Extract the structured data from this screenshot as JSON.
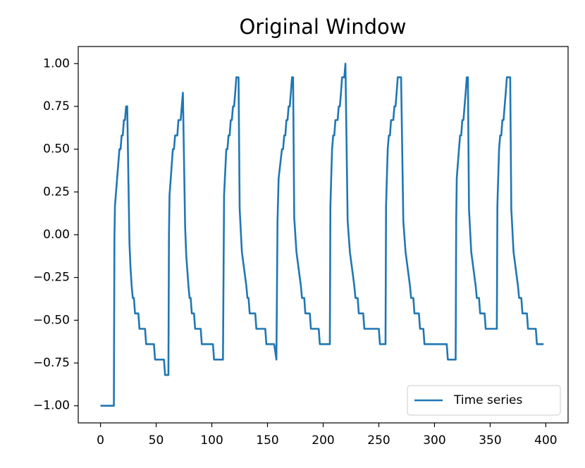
{
  "chart_data": {
    "type": "line",
    "title": "Original Window",
    "x": [
      0,
      12,
      12.5,
      13,
      17,
      18,
      19,
      20,
      21,
      22,
      23,
      24,
      26,
      27,
      28,
      29,
      30,
      31,
      34,
      35,
      40,
      41,
      48,
      49,
      57,
      58,
      61,
      61.5,
      62,
      65,
      66,
      67,
      69,
      70,
      72,
      73,
      74,
      76,
      77,
      79,
      80,
      81,
      82,
      84,
      85,
      90,
      91,
      101,
      102,
      110,
      111,
      113,
      114,
      115,
      116,
      117,
      118,
      119,
      120,
      121,
      122,
      124,
      125,
      127,
      129,
      131,
      132,
      133,
      134,
      139,
      140,
      148,
      149,
      156,
      158,
      159,
      160,
      163,
      164,
      165,
      166,
      167,
      168,
      169,
      170,
      171,
      172,
      173,
      174,
      176,
      178,
      180,
      181,
      183,
      184,
      188,
      189,
      196,
      197,
      206,
      206.5,
      208,
      209,
      210,
      211,
      213,
      214,
      215,
      216,
      217,
      219,
      220,
      222,
      224,
      226,
      228,
      229,
      231,
      232,
      236,
      237,
      250,
      251,
      256,
      256.5,
      258,
      259,
      260,
      261,
      263,
      264,
      265,
      266,
      267,
      270,
      272,
      274,
      276,
      278,
      279,
      281,
      282,
      286,
      287,
      290,
      291,
      311,
      312,
      319,
      319.5,
      320,
      322,
      323,
      324,
      325,
      326,
      327,
      328,
      329,
      330,
      331,
      333,
      335,
      337,
      338,
      340,
      341,
      345,
      346,
      356,
      356.5,
      358,
      359,
      360,
      361,
      362,
      363,
      364,
      365,
      368,
      369,
      371,
      373,
      375,
      376,
      378,
      379,
      383,
      384,
      391,
      392,
      398
    ],
    "series": [
      {
        "name": "Time series",
        "color": "#1f77b4",
        "values": [
          -1,
          -1,
          -0.02,
          0.17,
          0.5,
          0.5,
          0.58,
          0.58,
          0.67,
          0.67,
          0.75,
          0.75,
          -0.05,
          -0.2,
          -0.3,
          -0.37,
          -0.37,
          -0.46,
          -0.46,
          -0.55,
          -0.55,
          -0.64,
          -0.64,
          -0.73,
          -0.73,
          -0.82,
          -0.82,
          0,
          0.23,
          0.5,
          0.5,
          0.58,
          0.58,
          0.67,
          0.67,
          0.75,
          0.83,
          0.05,
          -0.12,
          -0.3,
          -0.37,
          -0.37,
          -0.46,
          -0.46,
          -0.55,
          -0.55,
          -0.64,
          -0.64,
          -0.73,
          -0.73,
          0.23,
          0.5,
          0.5,
          0.58,
          0.58,
          0.67,
          0.67,
          0.75,
          0.75,
          0.83,
          0.92,
          0.92,
          0.15,
          -0.1,
          -0.2,
          -0.3,
          -0.37,
          -0.37,
          -0.46,
          -0.46,
          -0.55,
          -0.55,
          -0.64,
          -0.64,
          -0.73,
          0.08,
          0.33,
          0.5,
          0.5,
          0.58,
          0.58,
          0.67,
          0.67,
          0.75,
          0.75,
          0.83,
          0.92,
          0.92,
          0.1,
          -0.1,
          -0.2,
          -0.3,
          -0.37,
          -0.37,
          -0.46,
          -0.46,
          -0.55,
          -0.55,
          -0.64,
          -0.64,
          0.17,
          0.5,
          0.58,
          0.58,
          0.67,
          0.67,
          0.75,
          0.75,
          0.83,
          0.92,
          0.92,
          1,
          0.08,
          -0.1,
          -0.2,
          -0.3,
          -0.37,
          -0.37,
          -0.46,
          -0.46,
          -0.55,
          -0.55,
          -0.64,
          -0.64,
          0.17,
          0.5,
          0.58,
          0.58,
          0.67,
          0.67,
          0.75,
          0.75,
          0.83,
          0.92,
          0.92,
          0.08,
          -0.1,
          -0.2,
          -0.3,
          -0.37,
          -0.37,
          -0.46,
          -0.46,
          -0.55,
          -0.55,
          -0.64,
          -0.64,
          -0.73,
          -0.73,
          0.08,
          0.33,
          0.5,
          0.58,
          0.58,
          0.67,
          0.67,
          0.75,
          0.83,
          0.92,
          0.92,
          0.15,
          -0.1,
          -0.2,
          -0.3,
          -0.37,
          -0.37,
          -0.46,
          -0.46,
          -0.55,
          -0.55,
          0.17,
          0.5,
          0.58,
          0.58,
          0.67,
          0.67,
          0.75,
          0.83,
          0.92,
          0.92,
          0.15,
          -0.1,
          -0.2,
          -0.3,
          -0.37,
          -0.37,
          -0.46,
          -0.46,
          -0.55,
          -0.55,
          -0.64,
          -0.64
        ]
      }
    ],
    "xlim": [
      -20,
      420
    ],
    "xticks": [
      0,
      50,
      100,
      150,
      200,
      250,
      300,
      350,
      400
    ],
    "ylim": [
      -1.1,
      1.1
    ],
    "yticks": [
      {
        "value": -1,
        "label": "−1.00"
      },
      {
        "value": -0.75,
        "label": "−0.75"
      },
      {
        "value": -0.5,
        "label": "−0.50"
      },
      {
        "value": -0.25,
        "label": "−0.25"
      },
      {
        "value": 0,
        "label": "0.00"
      },
      {
        "value": 0.25,
        "label": "0.25"
      },
      {
        "value": 0.5,
        "label": "0.50"
      },
      {
        "value": 0.75,
        "label": "0.75"
      },
      {
        "value": 1,
        "label": "1.00"
      }
    ],
    "grid": false,
    "legend": "lower right"
  }
}
